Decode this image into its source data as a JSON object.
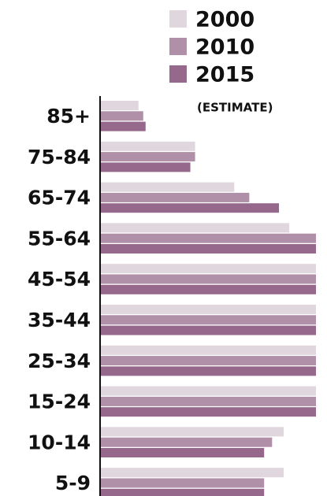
{
  "chart_data": {
    "type": "bar",
    "orientation": "horizontal",
    "categories": [
      "85+",
      "75-84",
      "65-74",
      "55-64",
      "45-54",
      "35-44",
      "25-34",
      "15-24",
      "10-14",
      "5-9"
    ],
    "series": [
      {
        "name": "2000",
        "color": "#e0d6de",
        "values": [
          17.5,
          43.8,
          62,
          87.6,
          100,
          100,
          100,
          100,
          85,
          85
        ]
      },
      {
        "name": "2010",
        "color": "#b08fa8",
        "values": [
          19.7,
          43.8,
          69,
          100,
          100,
          100,
          100,
          100,
          79.6,
          75.9
        ]
      },
      {
        "name": "2015",
        "color": "#96698c",
        "values": [
          20.8,
          41.6,
          82.8,
          100,
          100,
          100,
          100,
          100,
          75.9,
          75.9
        ]
      }
    ],
    "legend_note": "(ESTIMATE)",
    "xlim": [
      0,
      100
    ]
  }
}
